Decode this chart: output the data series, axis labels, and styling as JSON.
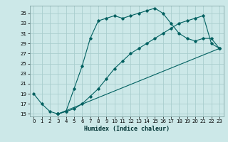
{
  "xlabel": "Humidex (Indice chaleur)",
  "bg_color": "#cce8e8",
  "grid_color": "#aacece",
  "line_color": "#006060",
  "xlim": [
    -0.5,
    23.5
  ],
  "ylim": [
    14.5,
    36.5
  ],
  "xticks": [
    0,
    1,
    2,
    3,
    4,
    5,
    6,
    7,
    8,
    9,
    10,
    11,
    12,
    13,
    14,
    15,
    16,
    17,
    18,
    19,
    20,
    21,
    22,
    23
  ],
  "yticks": [
    15,
    17,
    19,
    21,
    23,
    25,
    27,
    29,
    31,
    33,
    35
  ],
  "line1_x": [
    0,
    1,
    2,
    3,
    4,
    5,
    6,
    7,
    8,
    9,
    10,
    11,
    12,
    13,
    14,
    15,
    16,
    17,
    18,
    19,
    20,
    21,
    22,
    23
  ],
  "line1_y": [
    19,
    17,
    15.5,
    15,
    15.5,
    20,
    24.5,
    30,
    33.5,
    34,
    34.5,
    34,
    34.5,
    35,
    35.5,
    36,
    35,
    33,
    31,
    30,
    29.5,
    30,
    30,
    28
  ],
  "line2_x": [
    3,
    4,
    5,
    6,
    7,
    8,
    9,
    10,
    11,
    12,
    13,
    14,
    15,
    16,
    17,
    18,
    19,
    20,
    21,
    22,
    23
  ],
  "line2_y": [
    15,
    15.5,
    16,
    17,
    18.5,
    20,
    22,
    24,
    25.5,
    27,
    28,
    29,
    30,
    31,
    32,
    33,
    33.5,
    34,
    34.5,
    29,
    28
  ],
  "line3_x": [
    3,
    23
  ],
  "line3_y": [
    15,
    28
  ],
  "xlabel_fontsize": 6,
  "tick_fontsize": 5
}
